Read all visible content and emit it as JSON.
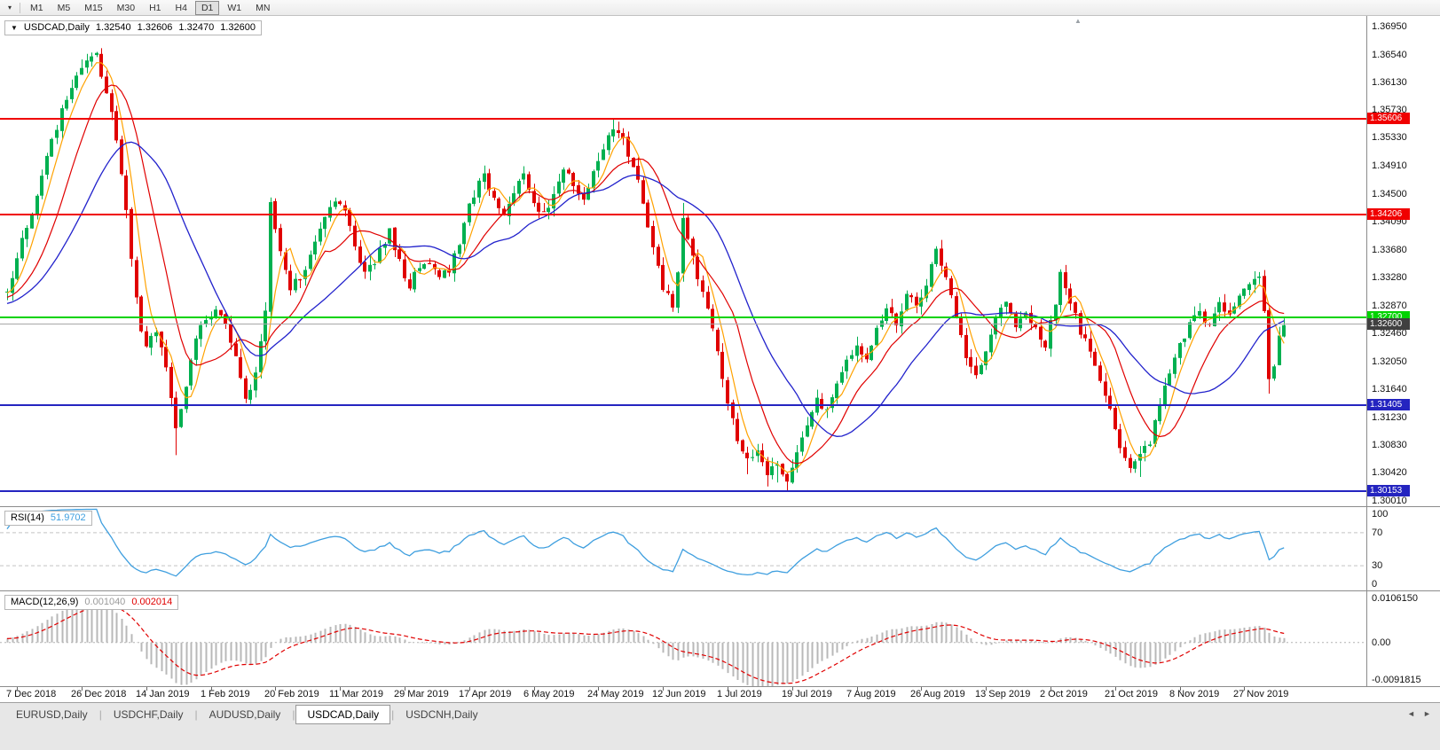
{
  "toolbar": {
    "dropdown_icon": "▾",
    "timeframes": [
      "M1",
      "M5",
      "M15",
      "M30",
      "H1",
      "H4",
      "D1",
      "W1",
      "MN"
    ],
    "active_timeframe": "D1"
  },
  "chart": {
    "title": "USDCAD,Daily",
    "collapse_icon": "▼",
    "shift_marker_icon": "▲",
    "ohlc": {
      "open": "1.32540",
      "high": "1.32606",
      "low": "1.32470",
      "close": "1.32600"
    },
    "price_axis_labels": [
      "1.36950",
      "1.36540",
      "1.36130",
      "1.35730",
      "1.35330",
      "1.34910",
      "1.34500",
      "1.34090",
      "1.33680",
      "1.33280",
      "1.32870",
      "1.32460",
      "1.32050",
      "1.31640",
      "1.31230",
      "1.30830",
      "1.30420",
      "1.30010"
    ],
    "levels": [
      {
        "price": 1.35606,
        "label": "1.35606",
        "color": "#f00000",
        "type": "resistance"
      },
      {
        "price": 1.34206,
        "label": "1.34206",
        "color": "#f00000",
        "type": "resistance"
      },
      {
        "price": 1.327,
        "label": "1.32700",
        "color": "#00d300",
        "type": "pivot"
      },
      {
        "price": 1.31405,
        "label": "1.31405",
        "color": "#2424c0",
        "type": "support"
      },
      {
        "price": 1.30153,
        "label": "1.30153",
        "color": "#2424c0",
        "type": "support"
      }
    ],
    "current_price": {
      "value": 1.326,
      "label": "1.32600",
      "tag_color": "#404040"
    },
    "date_labels": [
      "7 Dec 2018",
      "26 Dec 2018",
      "14 Jan 2019",
      "1 Feb 2019",
      "20 Feb 2019",
      "11 Mar 2019",
      "29 Mar 2019",
      "17 Apr 2019",
      "6 May 2019",
      "24 May 2019",
      "12 Jun 2019",
      "1 Jul 2019",
      "19 Jul 2019",
      "7 Aug 2019",
      "26 Aug 2019",
      "13 Sep 2019",
      "2 Oct 2019",
      "21 Oct 2019",
      "8 Nov 2019",
      "27 Nov 2019"
    ],
    "colors": {
      "bull": "#00b050",
      "bear": "#e00000",
      "ma_fast": "#ffa200",
      "ma_mid": "#e00000",
      "ma_slow": "#2222cc",
      "bg": "#ffffff"
    }
  },
  "chart_data": {
    "type": "candlestick",
    "symbol": "USDCAD",
    "timeframe": "Daily",
    "bars": 258,
    "first_label_index": 2,
    "bar_label_step": 13,
    "axis_min": 1.3001,
    "axis_max": 1.3695,
    "noise_seed": 12,
    "noise_amp": 0.0013,
    "warmup": {
      "bars": 32,
      "start": 1.3255
    },
    "close_anchors": [
      [
        0,
        1.331
      ],
      [
        2,
        1.3355
      ],
      [
        4,
        1.3405
      ],
      [
        6,
        1.3445
      ],
      [
        8,
        1.3505
      ],
      [
        10,
        1.355
      ],
      [
        12,
        1.359
      ],
      [
        14,
        1.362
      ],
      [
        16,
        1.3645
      ],
      [
        18,
        1.365
      ],
      [
        19,
        1.3625
      ],
      [
        20,
        1.36
      ],
      [
        21,
        1.3565
      ],
      [
        22,
        1.353
      ],
      [
        23,
        1.348
      ],
      [
        24,
        1.343
      ],
      [
        25,
        1.336
      ],
      [
        26,
        1.33
      ],
      [
        27,
        1.3255
      ],
      [
        28,
        1.323
      ],
      [
        29,
        1.3245
      ],
      [
        30,
        1.325
      ],
      [
        31,
        1.323
      ],
      [
        32,
        1.3195
      ],
      [
        33,
        1.315
      ],
      [
        34,
        1.311
      ],
      [
        35,
        1.3135
      ],
      [
        36,
        1.317
      ],
      [
        37,
        1.321
      ],
      [
        38,
        1.324
      ],
      [
        40,
        1.327
      ],
      [
        42,
        1.328
      ],
      [
        44,
        1.3265
      ],
      [
        46,
        1.321
      ],
      [
        48,
        1.3155
      ],
      [
        49,
        1.3165
      ],
      [
        50,
        1.319
      ],
      [
        51,
        1.323
      ],
      [
        52,
        1.3285
      ],
      [
        53,
        1.3435
      ],
      [
        54,
        1.34
      ],
      [
        55,
        1.337
      ],
      [
        56,
        1.334
      ],
      [
        57,
        1.3315
      ],
      [
        59,
        1.333
      ],
      [
        61,
        1.336
      ],
      [
        63,
        1.34
      ],
      [
        65,
        1.3435
      ],
      [
        66,
        1.3445
      ],
      [
        68,
        1.3425
      ],
      [
        70,
        1.337
      ],
      [
        72,
        1.3335
      ],
      [
        74,
        1.335
      ],
      [
        76,
        1.338
      ],
      [
        77,
        1.3395
      ],
      [
        79,
        1.335
      ],
      [
        81,
        1.3315
      ],
      [
        83,
        1.3345
      ],
      [
        85,
        1.335
      ],
      [
        87,
        1.333
      ],
      [
        89,
        1.334
      ],
      [
        91,
        1.3375
      ],
      [
        93,
        1.343
      ],
      [
        95,
        1.347
      ],
      [
        96,
        1.348
      ],
      [
        98,
        1.344
      ],
      [
        100,
        1.3425
      ],
      [
        102,
        1.345
      ],
      [
        104,
        1.348
      ],
      [
        106,
        1.344
      ],
      [
        108,
        1.342
      ],
      [
        110,
        1.345
      ],
      [
        112,
        1.349
      ],
      [
        114,
        1.3465
      ],
      [
        116,
        1.344
      ],
      [
        118,
        1.348
      ],
      [
        120,
        1.352
      ],
      [
        122,
        1.355
      ],
      [
        124,
        1.353
      ],
      [
        126,
        1.349
      ],
      [
        128,
        1.344
      ],
      [
        130,
        1.337
      ],
      [
        132,
        1.331
      ],
      [
        134,
        1.329
      ],
      [
        135,
        1.334
      ],
      [
        136,
        1.342
      ],
      [
        137,
        1.339
      ],
      [
        139,
        1.333
      ],
      [
        141,
        1.328
      ],
      [
        143,
        1.322
      ],
      [
        145,
        1.315
      ],
      [
        147,
        1.309
      ],
      [
        149,
        1.306
      ],
      [
        151,
        1.308
      ],
      [
        153,
        1.304
      ],
      [
        155,
        1.306
      ],
      [
        157,
        1.303
      ],
      [
        159,
        1.307
      ],
      [
        161,
        1.311
      ],
      [
        163,
        1.315
      ],
      [
        165,
        1.313
      ],
      [
        167,
        1.317
      ],
      [
        169,
        1.321
      ],
      [
        171,
        1.323
      ],
      [
        173,
        1.321
      ],
      [
        175,
        1.325
      ],
      [
        177,
        1.328
      ],
      [
        179,
        1.326
      ],
      [
        181,
        1.33
      ],
      [
        183,
        1.329
      ],
      [
        185,
        1.332
      ],
      [
        187,
        1.337
      ],
      [
        189,
        1.333
      ],
      [
        191,
        1.327
      ],
      [
        193,
        1.321
      ],
      [
        195,
        1.318
      ],
      [
        197,
        1.322
      ],
      [
        199,
        1.327
      ],
      [
        201,
        1.329
      ],
      [
        203,
        1.326
      ],
      [
        205,
        1.328
      ],
      [
        207,
        1.325
      ],
      [
        209,
        1.323
      ],
      [
        211,
        1.329
      ],
      [
        212,
        1.333
      ],
      [
        214,
        1.329
      ],
      [
        216,
        1.325
      ],
      [
        218,
        1.322
      ],
      [
        220,
        1.318
      ],
      [
        222,
        1.313
      ],
      [
        224,
        1.308
      ],
      [
        226,
        1.3055
      ],
      [
        228,
        1.3075
      ],
      [
        230,
        1.309
      ],
      [
        232,
        1.314
      ],
      [
        234,
        1.319
      ],
      [
        236,
        1.323
      ],
      [
        238,
        1.326
      ],
      [
        240,
        1.328
      ],
      [
        242,
        1.3255
      ],
      [
        244,
        1.329
      ],
      [
        246,
        1.327
      ],
      [
        248,
        1.33
      ],
      [
        250,
        1.332
      ],
      [
        252,
        1.333
      ],
      [
        253,
        1.328
      ],
      [
        254,
        1.318
      ],
      [
        255,
        1.32
      ],
      [
        256,
        1.324
      ],
      [
        257,
        1.326
      ]
    ],
    "wick_high_overrides": {
      "16": 1.3655,
      "17": 1.3657,
      "18": 1.3658,
      "53": 1.3445,
      "122": 1.356,
      "123": 1.3556,
      "136": 1.3437,
      "212": 1.334
    },
    "wick_low_overrides": {
      "34": 1.3068,
      "149": 1.304,
      "153": 1.3022,
      "155": 1.3028,
      "157": 1.3016,
      "226": 1.3042,
      "228": 1.3036,
      "254": 1.3158
    },
    "moving_averages": [
      {
        "name": "sma-fast",
        "period": 5,
        "color": "#ffa200"
      },
      {
        "name": "sma-mid",
        "period": 12,
        "color": "#e00000"
      },
      {
        "name": "sma-slow",
        "period": 24,
        "color": "#2222cc"
      }
    ],
    "indicators": {
      "rsi_period": 14,
      "macd": {
        "fast": 12,
        "slow": 26,
        "signal": 9
      }
    }
  },
  "rsi": {
    "label": "RSI(14)",
    "value": "51.9702",
    "upper": 70,
    "lower": 30,
    "line_color": "#3f9fdf",
    "scale": [
      {
        "label": "100",
        "value": 100
      },
      {
        "label": "70",
        "value": 70
      },
      {
        "label": "30",
        "value": 30
      },
      {
        "label": "0",
        "value": 0
      }
    ]
  },
  "macd": {
    "label": "MACD(12,26,9)",
    "value_main": "0.001040",
    "value_signal": "0.002014",
    "histogram_color": "#b8b8b8",
    "signal_color": "#e00000",
    "scale": [
      {
        "label": "0.0106150",
        "value": 0.010615
      },
      {
        "label": "0.00",
        "value": 0
      },
      {
        "label": "-0.0091815",
        "value": -0.0091815
      }
    ]
  },
  "tabs": {
    "items": [
      "EURUSD,Daily",
      "USDCHF,Daily",
      "AUDUSD,Daily",
      "USDCAD,Daily",
      "USDCNH,Daily"
    ],
    "active": "USDCAD,Daily",
    "separator": "|",
    "scroll_left_icon": "◄",
    "scroll_right_icon": "►"
  }
}
